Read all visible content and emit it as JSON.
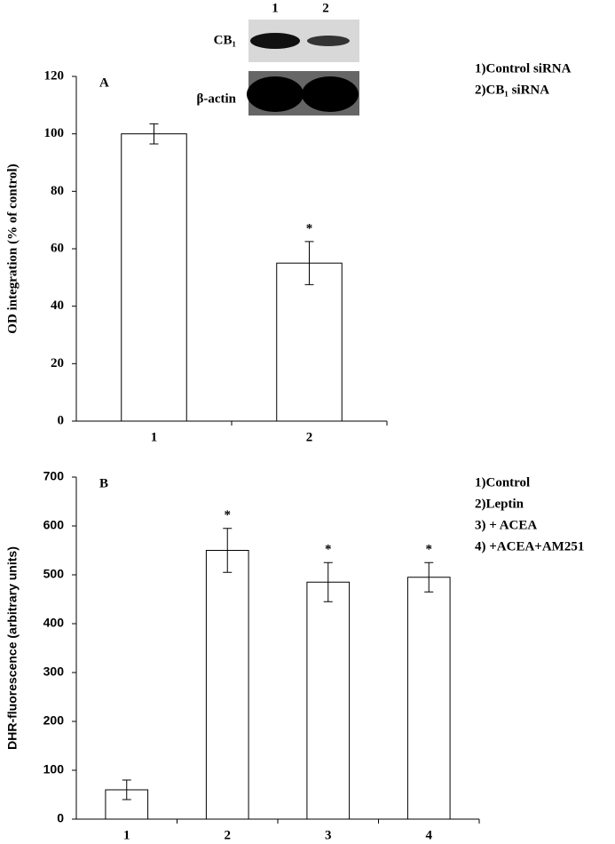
{
  "chart_data": [
    {
      "type": "bar",
      "panel_label": "A",
      "y_label": "OD integration (% of control)",
      "categories": [
        "1",
        "2"
      ],
      "values": [
        100,
        55
      ],
      "errors": [
        3.5,
        7.5
      ],
      "color": "#ffffff",
      "ylim": [
        0,
        120
      ],
      "yticks": [
        0,
        20,
        40,
        60,
        80,
        100,
        120
      ],
      "annotations": [
        {
          "category": "2",
          "text": "*"
        }
      ],
      "legend": [
        "1)Control siRNA",
        "2)CB₁ siRNA"
      ],
      "blot": {
        "lanes": [
          "1",
          "2"
        ],
        "rows": [
          "CB₁",
          "β-actin"
        ]
      }
    },
    {
      "type": "bar",
      "panel_label": "B",
      "y_label": "DHR-fluorescence (arbitrary units)",
      "categories": [
        "1",
        "2",
        "3",
        "4"
      ],
      "values": [
        60,
        550,
        485,
        495
      ],
      "errors": [
        20,
        45,
        40,
        30
      ],
      "color": "#ffffff",
      "ylim": [
        0,
        700
      ],
      "yticks": [
        0,
        100,
        200,
        300,
        400,
        500,
        600,
        700
      ],
      "annotations": [
        {
          "category": "2",
          "text": "*"
        },
        {
          "category": "3",
          "text": "*"
        },
        {
          "category": "4",
          "text": "*"
        }
      ],
      "legend": [
        "1)Control",
        "2)Leptin",
        "3) + ACEA",
        "4) +ACEA+AM251"
      ]
    }
  ]
}
